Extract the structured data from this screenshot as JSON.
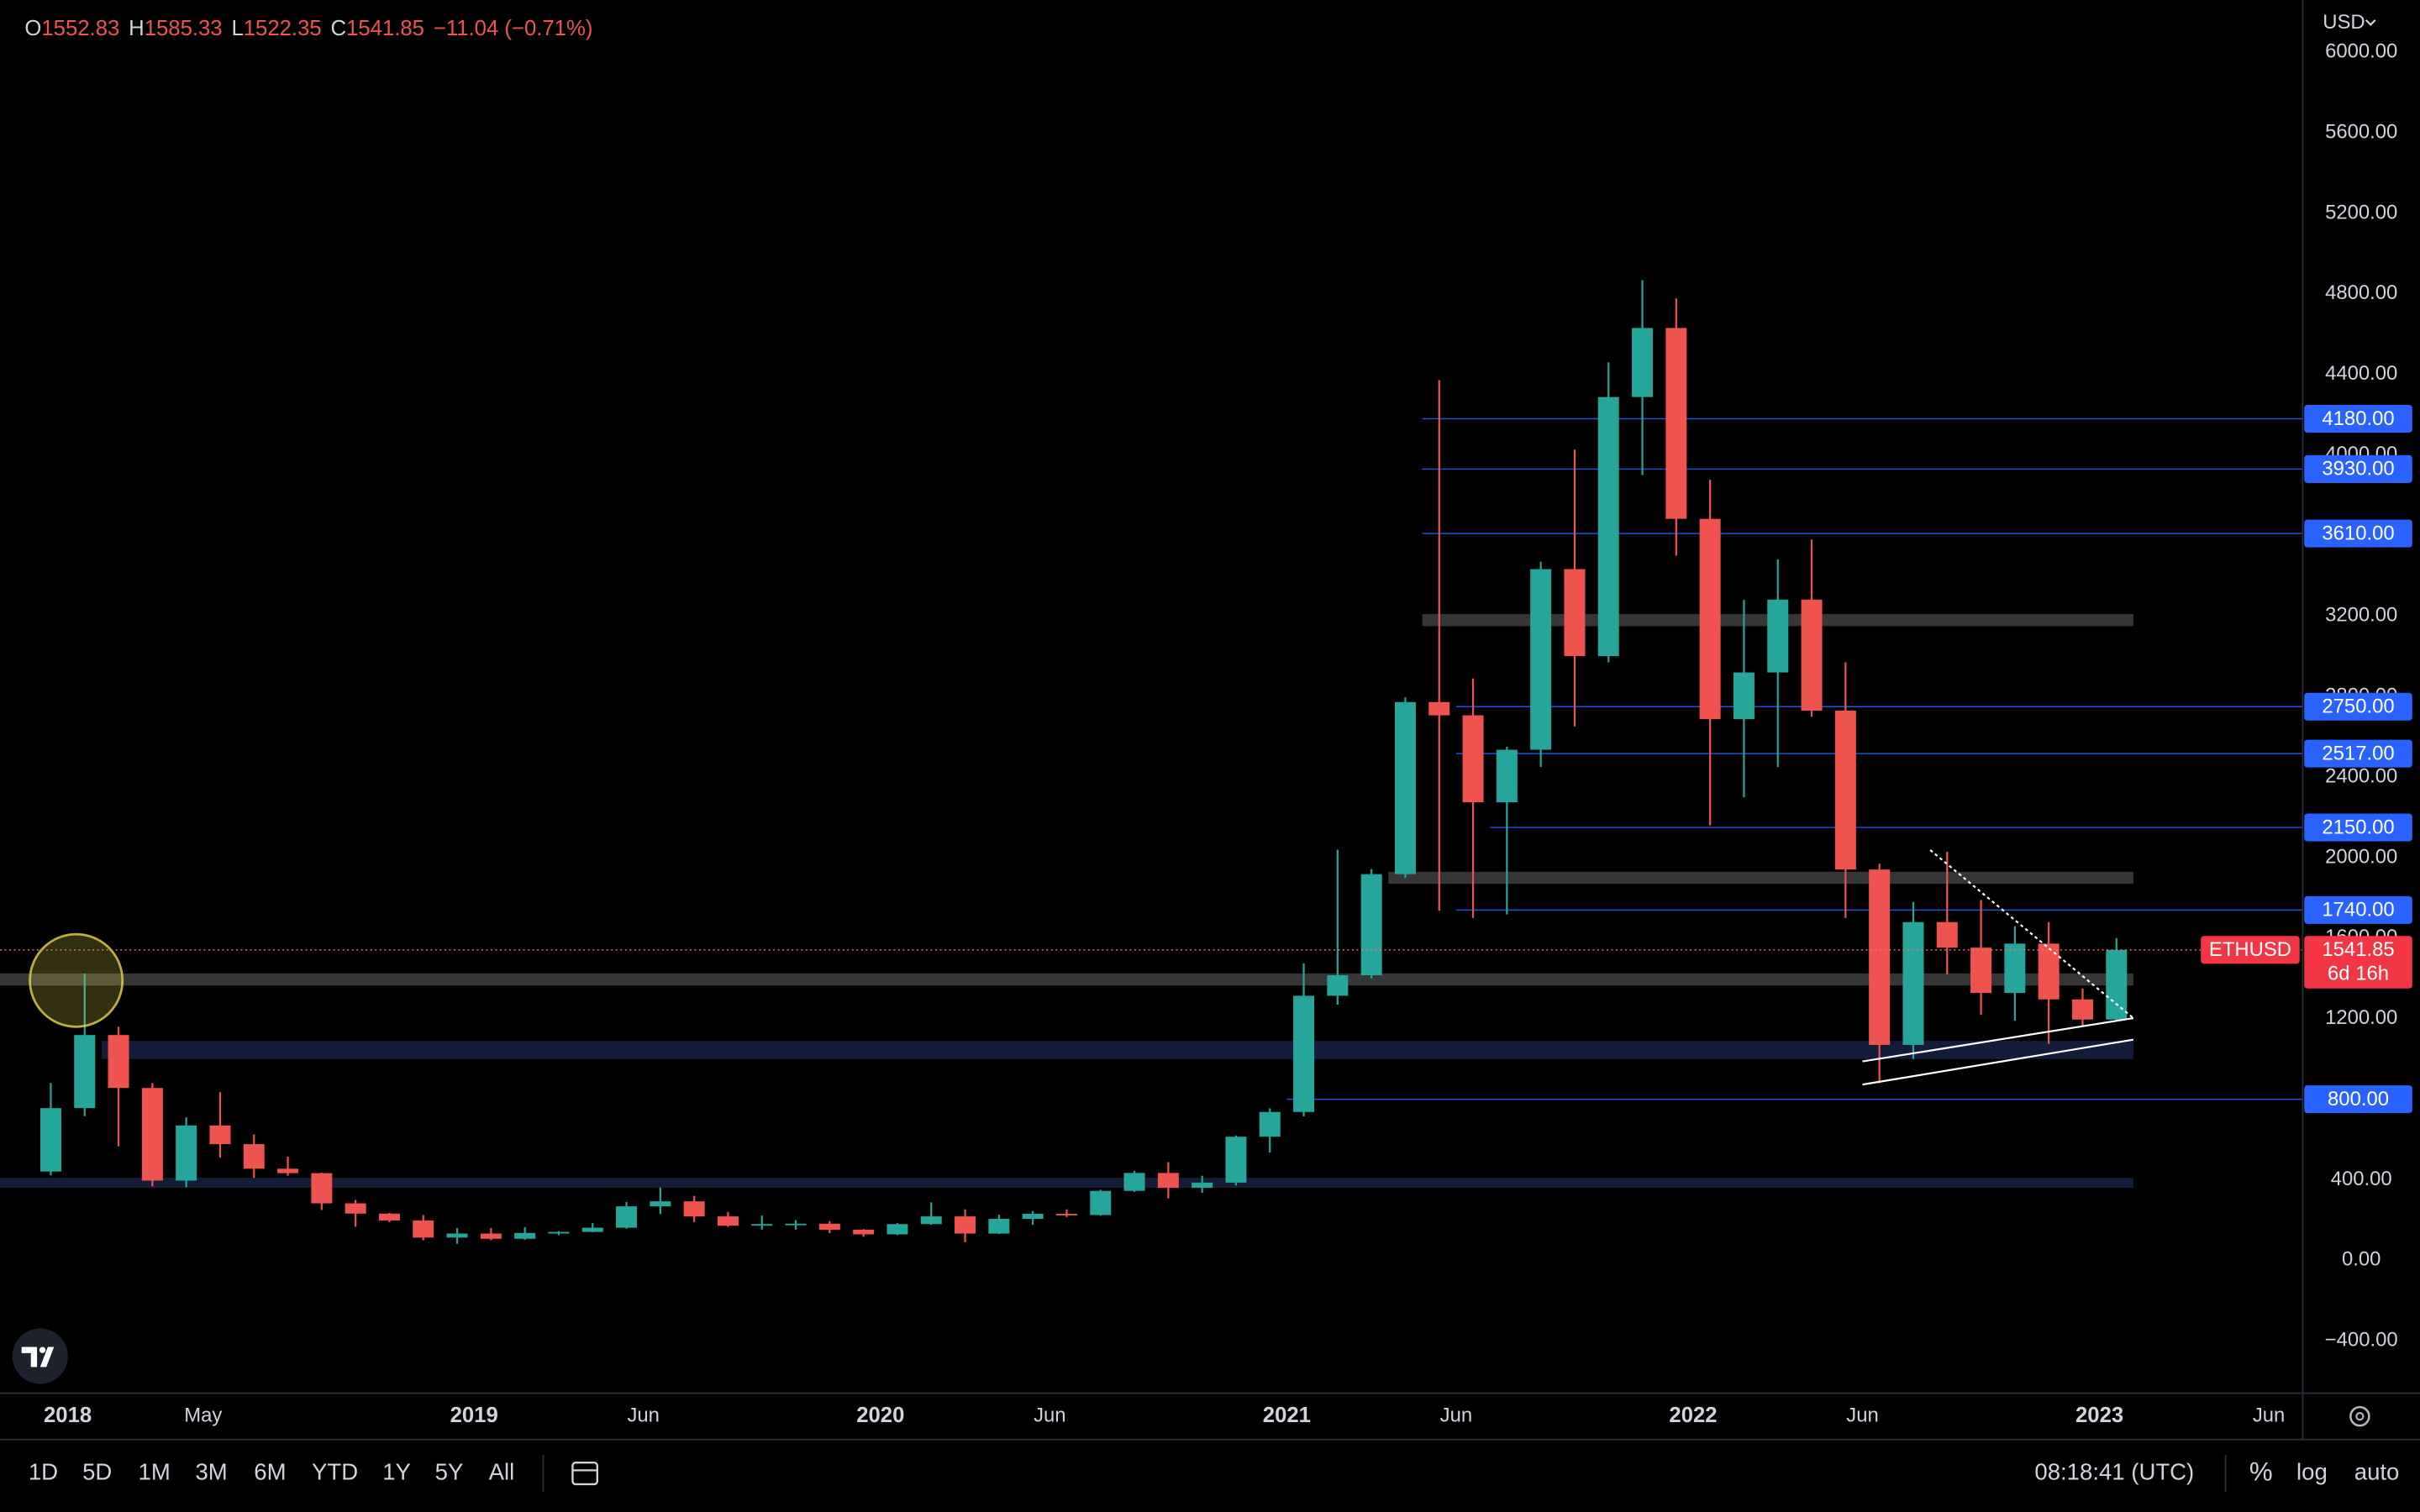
{
  "chart_data": {
    "type": "candlestick",
    "legend": {
      "open_label": "O",
      "open": 1552.83,
      "high_label": "H",
      "high": 1585.33,
      "low_label": "L",
      "low": 1522.35,
      "close_label": "C",
      "close": 1541.85,
      "change": "−11.04 (−0.71%)"
    },
    "currency": "USD",
    "symbol": "ETHUSD",
    "last_price": 1541.85,
    "countdown": "6d 16h",
    "up_color": "#26a69a",
    "down_color": "#ef5350",
    "log_scale": false,
    "grid": false,
    "x": [
      "2017-12",
      "2018-01",
      "2018-02",
      "2018-03",
      "2018-04",
      "2018-05",
      "2018-06",
      "2018-07",
      "2018-08",
      "2018-09",
      "2018-10",
      "2018-11",
      "2018-12",
      "2019-01",
      "2019-02",
      "2019-03",
      "2019-04",
      "2019-05",
      "2019-06",
      "2019-07",
      "2019-08",
      "2019-09",
      "2019-10",
      "2019-11",
      "2019-12",
      "2020-01",
      "2020-02",
      "2020-03",
      "2020-04",
      "2020-05",
      "2020-06",
      "2020-07",
      "2020-08",
      "2020-09",
      "2020-10",
      "2020-11",
      "2020-12",
      "2021-01",
      "2021-02",
      "2021-03",
      "2021-04",
      "2021-05",
      "2021-06",
      "2021-07",
      "2021-08",
      "2021-09",
      "2021-10",
      "2021-11",
      "2021-12",
      "2022-01",
      "2022-02",
      "2022-03",
      "2022-04",
      "2022-05",
      "2022-06",
      "2022-07",
      "2022-08",
      "2022-09",
      "2022-10",
      "2022-11",
      "2022-12",
      "2023-01"
    ],
    "open": [
      441,
      756,
      1119,
      856,
      396,
      670,
      577,
      455,
      433,
      283,
      232,
      198,
      113,
      133,
      107,
      136,
      141,
      162,
      268,
      293,
      218,
      172,
      180,
      182,
      152,
      129,
      180,
      218,
      133,
      206,
      231,
      225,
      345,
      434,
      360,
      386,
      614,
      737,
      1314,
      1416,
      1918,
      2773,
      2707,
      2275,
      2536,
      3433,
      3001,
      4288,
      4631,
      3683,
      2688,
      2920,
      3282,
      2730,
      1941,
      1070,
      1680,
      1553,
      1328,
      1573,
      1296,
      1196
    ],
    "high": [
      881,
      1424,
      1160,
      880,
      710,
      835,
      625,
      515,
      435,
      300,
      235,
      225,
      160,
      160,
      165,
      145,
      185,
      290,
      362,
      320,
      240,
      222,
      200,
      195,
      155,
      185,
      288,
      253,
      227,
      245,
      253,
      350,
      445,
      488,
      420,
      620,
      755,
      1475,
      2040,
      1943,
      2796,
      4372,
      2890,
      2551,
      3470,
      4027,
      4460,
      4868,
      4778,
      3877,
      3280,
      3482,
      3580,
      2970,
      1970,
      1780,
      2030,
      1790,
      1660,
      1680,
      1350,
      1600
    ],
    "low": [
      422,
      716,
      566,
      367,
      363,
      510,
      410,
      420,
      250,
      167,
      190,
      100,
      82,
      100,
      102,
      125,
      140,
      157,
      230,
      190,
      167,
      152,
      152,
      135,
      117,
      126,
      177,
      90,
      131,
      176,
      215,
      222,
      340,
      308,
      335,
      372,
      535,
      715,
      1270,
      1400,
      1900,
      1736,
      1700,
      1718,
      2450,
      2652,
      2970,
      3900,
      3500,
      2160,
      2300,
      2450,
      2700,
      1700,
      880,
      1000,
      1420,
      1220,
      1190,
      1075,
      1160,
      1190
    ],
    "close": [
      756,
      1119,
      856,
      396,
      670,
      577,
      455,
      433,
      283,
      232,
      198,
      113,
      133,
      107,
      136,
      141,
      162,
      268,
      293,
      218,
      172,
      180,
      182,
      152,
      129,
      180,
      218,
      133,
      206,
      231,
      225,
      345,
      434,
      360,
      386,
      614,
      737,
      1314,
      1416,
      1918,
      2773,
      2707,
      2275,
      2536,
      3433,
      3001,
      4288,
      4631,
      3683,
      2688,
      2920,
      3282,
      2730,
      1941,
      1070,
      1680,
      1553,
      1328,
      1573,
      1296,
      1196,
      1541.85
    ],
    "xlim": [
      "2017-11",
      "2023-07"
    ],
    "xticks": [
      {
        "value": "2018-01",
        "label": "2018"
      },
      {
        "value": "2018-05",
        "label": "May"
      },
      {
        "value": "2019-01",
        "label": "2019"
      },
      {
        "value": "2019-06",
        "label": "Jun"
      },
      {
        "value": "2020-01",
        "label": "2020"
      },
      {
        "value": "2020-06",
        "label": "Jun"
      },
      {
        "value": "2021-01",
        "label": "2021"
      },
      {
        "value": "2021-06",
        "label": "Jun"
      },
      {
        "value": "2022-01",
        "label": "2022"
      },
      {
        "value": "2022-06",
        "label": "Jun"
      },
      {
        "value": "2023-01",
        "label": "2023"
      },
      {
        "value": "2023-06",
        "label": "Jun"
      }
    ],
    "ylim": [
      -660,
      6260
    ],
    "yticks": [
      {
        "value": 6000,
        "label": "6000.00"
      },
      {
        "value": 5600,
        "label": "5600.00"
      },
      {
        "value": 5200,
        "label": "5200.00"
      },
      {
        "value": 4800,
        "label": "4800.00"
      },
      {
        "value": 4400,
        "label": "4400.00"
      },
      {
        "value": 4000,
        "label": "4000.00"
      },
      {
        "value": 3600,
        "label": "3600.00"
      },
      {
        "value": 3200,
        "label": "3200.00"
      },
      {
        "value": 2800,
        "label": "2800.00"
      },
      {
        "value": 2400,
        "label": "2400.00"
      },
      {
        "value": 2000,
        "label": "2000.00"
      },
      {
        "value": 1600,
        "label": "1600.00"
      },
      {
        "value": 1200,
        "label": "1200.00"
      },
      {
        "value": 800,
        "label": "800.00"
      },
      {
        "value": 400,
        "label": "400.00"
      },
      {
        "value": 0,
        "label": "0.00"
      },
      {
        "value": -400,
        "label": "−400.00"
      }
    ],
    "levels": [
      {
        "value": 4180,
        "label": "4180.00",
        "start": "2021-05"
      },
      {
        "value": 3930,
        "label": "3930.00",
        "start": "2021-05"
      },
      {
        "value": 3610,
        "label": "3610.00",
        "start": "2021-05"
      },
      {
        "value": 2750,
        "label": "2750.00",
        "start": "2021-06"
      },
      {
        "value": 2517,
        "label": "2517.00",
        "start": "2021-06"
      },
      {
        "value": 2150,
        "label": "2150.00",
        "start": "2021-07"
      },
      {
        "value": 1740,
        "label": "1740.00",
        "start": "2021-06"
      },
      {
        "value": 800,
        "label": "800.00",
        "start": "2021-01"
      }
    ],
    "level_color": "#2962ff",
    "zones": [
      {
        "from": 3150,
        "to": 3210,
        "start": "2021-05",
        "end": "2023-02",
        "color": "#363636"
      },
      {
        "from": 1870,
        "to": 1930,
        "start": "2021-04",
        "end": "2023-02",
        "color": "#363636"
      },
      {
        "from": 1365,
        "to": 1425,
        "start": "2017-11",
        "end": "2023-02",
        "color": "#363636"
      },
      {
        "from": 1000,
        "to": 1090,
        "start": "2018-02",
        "end": "2023-02",
        "color": "#141c3a"
      },
      {
        "from": 360,
        "to": 410,
        "start": "2017-11",
        "end": "2023-02",
        "color": "#141c3a"
      }
    ],
    "trendlines": [
      {
        "x": [
          "2022-06",
          "2023-02"
        ],
        "y": [
          988,
          1203
        ],
        "color": "#ffffff",
        "dashed": false
      },
      {
        "x": [
          "2022-06",
          "2023-02"
        ],
        "y": [
          873,
          1096
        ],
        "color": "#ffffff",
        "dashed": false
      },
      {
        "x": [
          "2022-08",
          "2023-02"
        ],
        "y": [
          2038,
          1203
        ],
        "color": "#ffffff",
        "dashed": true
      }
    ],
    "highlight": {
      "x": "2018-01",
      "y": 1390,
      "color": "#e8d44d"
    }
  },
  "toolbar": {
    "timeframes": [
      "1D",
      "5D",
      "1M",
      "3M",
      "6M",
      "YTD",
      "1Y",
      "5Y",
      "All"
    ],
    "clock": "08:18:41 (UTC)",
    "scale_options": [
      "%",
      "log",
      "auto"
    ]
  }
}
